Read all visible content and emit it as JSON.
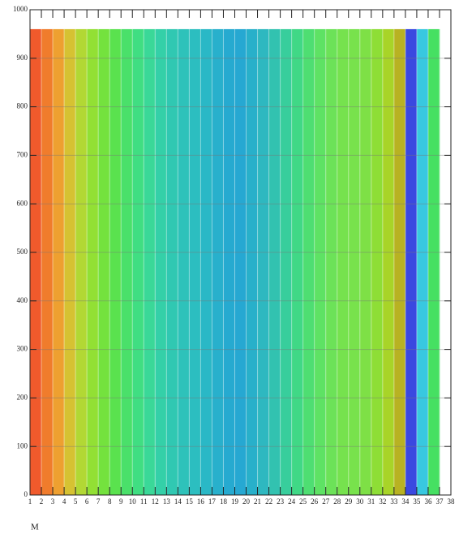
{
  "chart_data": {
    "type": "heatmap",
    "xlim": [
      1,
      38
    ],
    "xticks": [
      1,
      2,
      3,
      4,
      5,
      6,
      7,
      8,
      9,
      10,
      11,
      12,
      13,
      14,
      15,
      16,
      17,
      18,
      19,
      20,
      21,
      22,
      23,
      24,
      25,
      26,
      27,
      28,
      29,
      30,
      31,
      32,
      33,
      34,
      35,
      36,
      37,
      38
    ],
    "ylim": [
      0,
      1000
    ],
    "yticks": [
      0,
      100,
      200,
      300,
      400,
      500,
      600,
      700,
      800,
      900,
      1000
    ],
    "yrange": [
      0,
      960
    ],
    "column_colors": [
      "#f05a2c",
      "#f07c2c",
      "#eea030",
      "#d6c232",
      "#b2d834",
      "#92e034",
      "#74e23e",
      "#5ae24e",
      "#4ae06a",
      "#40de82",
      "#3ad898",
      "#34d0a8",
      "#30c8b2",
      "#2ec2ba",
      "#2cbec0",
      "#2ab8c6",
      "#28b0cc",
      "#26aad0",
      "#26a8d2",
      "#28b0ca",
      "#2eb8c0",
      "#32c2b0",
      "#38ce9c",
      "#40d886",
      "#4ede72",
      "#5ee264",
      "#6ce258",
      "#76e24e",
      "#78e24c",
      "#7ee046",
      "#8ede36",
      "#a8d428",
      "#b8b222",
      "#3a48e0",
      "#38c8e0",
      "#46e062"
    ],
    "grid": true,
    "xlabel": "M"
  }
}
